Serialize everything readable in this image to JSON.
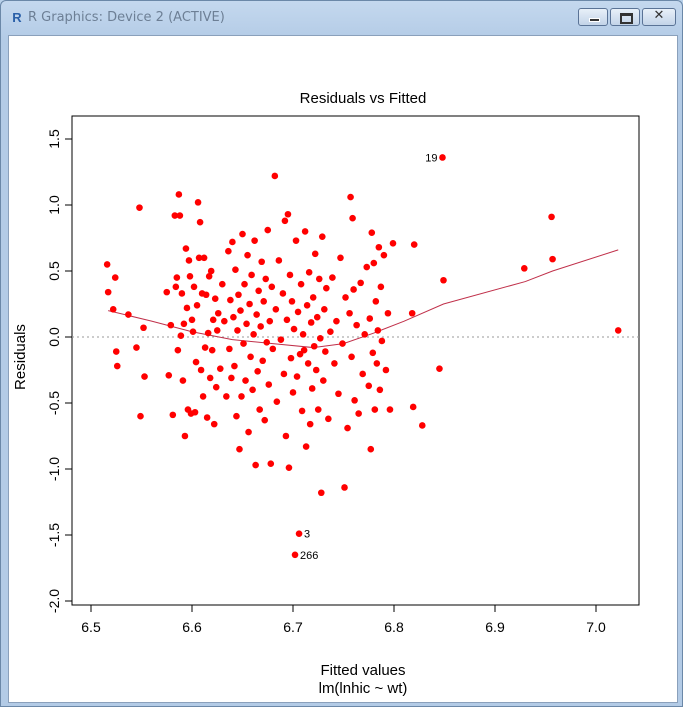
{
  "window": {
    "title": "R Graphics: Device 2 (ACTIVE)",
    "app_icon": "r-logo-icon",
    "controls": {
      "minimize": "minimize-icon",
      "maximize": "maximize-icon",
      "close": "close-icon"
    }
  },
  "chart_data": {
    "type": "scatter",
    "title": "Residuals vs Fitted",
    "xlabel": "Fitted values",
    "sublabel": "lm(lnhic ~ wt)",
    "ylabel": "Residuals",
    "xlim": [
      6.5,
      7.05
    ],
    "ylim": [
      -2.0,
      1.7
    ],
    "xticks": [
      "6.5",
      "6.6",
      "6.7",
      "6.8",
      "6.9",
      "7.0"
    ],
    "yticks": [
      "-2.0",
      "-1.5",
      "-1.0",
      "-0.5",
      "0.0",
      "0.5",
      "1.0",
      "1.5"
    ],
    "point_color": "#ff0000",
    "smooth_color": "#c0304a",
    "zero_line_color": "#9a9a9a",
    "points": [
      [
        6.516,
        0.55
      ],
      [
        6.517,
        0.34
      ],
      [
        6.522,
        0.21
      ],
      [
        6.524,
        0.45
      ],
      [
        6.525,
        -0.11
      ],
      [
        6.526,
        -0.22
      ],
      [
        6.537,
        0.17
      ],
      [
        6.545,
        -0.08
      ],
      [
        6.548,
        0.98
      ],
      [
        6.549,
        -0.6
      ],
      [
        6.552,
        0.07
      ],
      [
        6.553,
        -0.3
      ],
      [
        6.575,
        0.34
      ],
      [
        6.577,
        -0.29
      ],
      [
        6.579,
        0.09
      ],
      [
        6.581,
        -0.59
      ],
      [
        6.583,
        0.92
      ],
      [
        6.584,
        0.38
      ],
      [
        6.585,
        0.45
      ],
      [
        6.586,
        -0.1
      ],
      [
        6.587,
        1.08
      ],
      [
        6.588,
        0.92
      ],
      [
        6.589,
        0.01
      ],
      [
        6.59,
        0.33
      ],
      [
        6.591,
        -0.33
      ],
      [
        6.592,
        0.1
      ],
      [
        6.593,
        -0.75
      ],
      [
        6.594,
        0.67
      ],
      [
        6.595,
        0.22
      ],
      [
        6.596,
        -0.55
      ],
      [
        6.597,
        0.58
      ],
      [
        6.598,
        0.46
      ],
      [
        6.599,
        -0.58
      ],
      [
        6.6,
        0.13
      ],
      [
        6.601,
        0.04
      ],
      [
        6.602,
        0.38
      ],
      [
        6.603,
        -0.57
      ],
      [
        6.604,
        -0.19
      ],
      [
        6.605,
        0.24
      ],
      [
        6.606,
        1.02
      ],
      [
        6.607,
        0.6
      ],
      [
        6.608,
        0.87
      ],
      [
        6.609,
        -0.25
      ],
      [
        6.61,
        0.33
      ],
      [
        6.611,
        -0.45
      ],
      [
        6.612,
        0.6
      ],
      [
        6.613,
        -0.08
      ],
      [
        6.614,
        0.32
      ],
      [
        6.615,
        -0.61
      ],
      [
        6.616,
        0.03
      ],
      [
        6.617,
        0.46
      ],
      [
        6.618,
        -0.31
      ],
      [
        6.619,
        0.5
      ],
      [
        6.62,
        -0.1
      ],
      [
        6.621,
        0.13
      ],
      [
        6.622,
        -0.66
      ],
      [
        6.623,
        0.29
      ],
      [
        6.624,
        -0.38
      ],
      [
        6.625,
        0.05
      ],
      [
        6.626,
        0.18
      ],
      [
        6.628,
        -0.24
      ],
      [
        6.63,
        0.4
      ],
      [
        6.632,
        0.12
      ],
      [
        6.634,
        -0.45
      ],
      [
        6.636,
        0.65
      ],
      [
        6.637,
        -0.09
      ],
      [
        6.638,
        0.28
      ],
      [
        6.639,
        -0.31
      ],
      [
        6.64,
        0.72
      ],
      [
        6.641,
        0.15
      ],
      [
        6.642,
        -0.22
      ],
      [
        6.643,
        0.51
      ],
      [
        6.644,
        -0.6
      ],
      [
        6.645,
        0.05
      ],
      [
        6.646,
        0.32
      ],
      [
        6.647,
        -0.85
      ],
      [
        6.648,
        0.2
      ],
      [
        6.649,
        -0.45
      ],
      [
        6.65,
        0.78
      ],
      [
        6.651,
        -0.05
      ],
      [
        6.652,
        0.4
      ],
      [
        6.653,
        -0.33
      ],
      [
        6.654,
        0.1
      ],
      [
        6.655,
        0.62
      ],
      [
        6.656,
        -0.72
      ],
      [
        6.657,
        0.25
      ],
      [
        6.658,
        -0.15
      ],
      [
        6.659,
        0.47
      ],
      [
        6.66,
        -0.4
      ],
      [
        6.661,
        0.02
      ],
      [
        6.662,
        0.73
      ],
      [
        6.663,
        -0.97
      ],
      [
        6.664,
        0.17
      ],
      [
        6.665,
        -0.26
      ],
      [
        6.666,
        0.35
      ],
      [
        6.667,
        -0.55
      ],
      [
        6.668,
        0.08
      ],
      [
        6.669,
        0.57
      ],
      [
        6.67,
        -0.18
      ],
      [
        6.671,
        0.27
      ],
      [
        6.672,
        -0.63
      ],
      [
        6.673,
        0.44
      ],
      [
        6.674,
        -0.04
      ],
      [
        6.675,
        0.81
      ],
      [
        6.676,
        -0.36
      ],
      [
        6.677,
        0.12
      ],
      [
        6.678,
        -0.96
      ],
      [
        6.679,
        0.38
      ],
      [
        6.68,
        -0.09
      ],
      [
        6.682,
        1.22
      ],
      [
        6.683,
        0.21
      ],
      [
        6.684,
        -0.49
      ],
      [
        6.686,
        0.58
      ],
      [
        6.688,
        -0.02
      ],
      [
        6.69,
        0.33
      ],
      [
        6.691,
        -0.28
      ],
      [
        6.692,
        0.88
      ],
      [
        6.693,
        -0.75
      ],
      [
        6.694,
        0.13
      ],
      [
        6.695,
        0.93
      ],
      [
        6.696,
        -0.99
      ],
      [
        6.697,
        0.47
      ],
      [
        6.698,
        -0.16
      ],
      [
        6.699,
        0.27
      ],
      [
        6.7,
        -0.42
      ],
      [
        6.701,
        0.06
      ],
      [
        6.702,
        -1.65
      ],
      [
        6.703,
        0.73
      ],
      [
        6.704,
        -0.3
      ],
      [
        6.705,
        0.19
      ],
      [
        6.706,
        -1.49
      ],
      [
        6.707,
        -0.13
      ],
      [
        6.708,
        0.4
      ],
      [
        6.709,
        -0.56
      ],
      [
        6.71,
        0.02
      ],
      [
        6.711,
        -0.1
      ],
      [
        6.712,
        0.8
      ],
      [
        6.713,
        -0.83
      ],
      [
        6.714,
        0.24
      ],
      [
        6.715,
        -0.2
      ],
      [
        6.716,
        0.49
      ],
      [
        6.717,
        -0.66
      ],
      [
        6.718,
        0.11
      ],
      [
        6.719,
        -0.39
      ],
      [
        6.72,
        0.3
      ],
      [
        6.721,
        -0.07
      ],
      [
        6.722,
        0.63
      ],
      [
        6.723,
        -0.25
      ],
      [
        6.724,
        0.15
      ],
      [
        6.725,
        -0.55
      ],
      [
        6.726,
        0.44
      ],
      [
        6.727,
        -0.01
      ],
      [
        6.728,
        -1.18
      ],
      [
        6.729,
        0.76
      ],
      [
        6.73,
        -0.33
      ],
      [
        6.731,
        0.21
      ],
      [
        6.732,
        -0.11
      ],
      [
        6.733,
        0.37
      ],
      [
        6.735,
        -0.62
      ],
      [
        6.737,
        0.04
      ],
      [
        6.739,
        0.45
      ],
      [
        6.741,
        -0.2
      ],
      [
        6.743,
        0.12
      ],
      [
        6.745,
        -0.43
      ],
      [
        6.747,
        0.6
      ],
      [
        6.749,
        -0.05
      ],
      [
        6.751,
        -1.14
      ],
      [
        6.752,
        0.3
      ],
      [
        6.754,
        -0.69
      ],
      [
        6.756,
        0.18
      ],
      [
        6.757,
        1.06
      ],
      [
        6.758,
        -0.15
      ],
      [
        6.759,
        0.9
      ],
      [
        6.76,
        0.36
      ],
      [
        6.761,
        -0.48
      ],
      [
        6.763,
        0.09
      ],
      [
        6.765,
        -0.58
      ],
      [
        6.767,
        0.41
      ],
      [
        6.769,
        -0.28
      ],
      [
        6.771,
        0.02
      ],
      [
        6.773,
        0.53
      ],
      [
        6.775,
        -0.37
      ],
      [
        6.776,
        0.14
      ],
      [
        6.777,
        -0.85
      ],
      [
        6.778,
        0.79
      ],
      [
        6.779,
        -0.12
      ],
      [
        6.78,
        0.56
      ],
      [
        6.781,
        -0.55
      ],
      [
        6.782,
        0.27
      ],
      [
        6.783,
        -0.2
      ],
      [
        6.784,
        0.05
      ],
      [
        6.785,
        0.68
      ],
      [
        6.786,
        -0.4
      ],
      [
        6.787,
        0.38
      ],
      [
        6.788,
        -0.03
      ],
      [
        6.79,
        0.62
      ],
      [
        6.792,
        -0.25
      ],
      [
        6.794,
        0.18
      ],
      [
        6.796,
        -0.55
      ],
      [
        6.799,
        0.71
      ],
      [
        6.818,
        0.18
      ],
      [
        6.819,
        -0.53
      ],
      [
        6.82,
        0.7
      ],
      [
        6.828,
        -0.67
      ],
      [
        6.845,
        -0.24
      ],
      [
        6.848,
        1.36
      ],
      [
        6.849,
        0.43
      ],
      [
        6.929,
        0.52
      ],
      [
        6.956,
        0.91
      ],
      [
        6.957,
        0.59
      ],
      [
        7.022,
        0.05
      ]
    ],
    "labels": [
      {
        "text": "19",
        "x": 6.848,
        "y": 1.36,
        "side": "left"
      },
      {
        "text": "3",
        "x": 6.706,
        "y": -1.49,
        "side": "right"
      },
      {
        "text": "266",
        "x": 6.702,
        "y": -1.65,
        "side": "right"
      }
    ],
    "smooth": [
      [
        6.517,
        0.2
      ],
      [
        6.56,
        0.12
      ],
      [
        6.6,
        0.04
      ],
      [
        6.64,
        -0.02
      ],
      [
        6.68,
        -0.05
      ],
      [
        6.72,
        -0.08
      ],
      [
        6.75,
        -0.05
      ],
      [
        6.78,
        0.03
      ],
      [
        6.81,
        0.12
      ],
      [
        6.849,
        0.25
      ],
      [
        6.93,
        0.42
      ],
      [
        6.957,
        0.5
      ],
      [
        7.022,
        0.66
      ]
    ]
  }
}
